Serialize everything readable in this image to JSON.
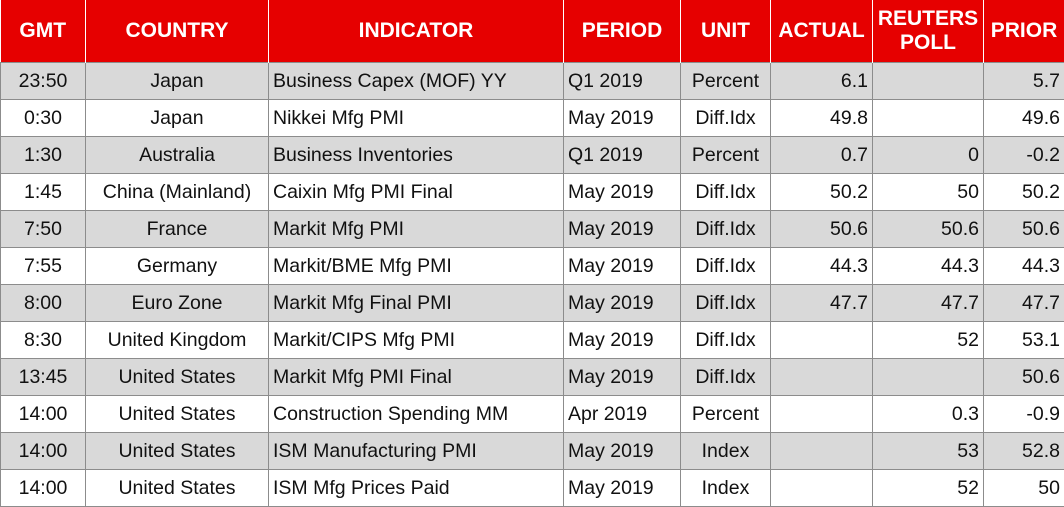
{
  "table": {
    "header": [
      "GMT",
      "COUNTRY",
      "INDICATOR",
      "PERIOD",
      "UNIT",
      "ACTUAL",
      "REUTERS POLL",
      "PRIOR"
    ],
    "rows": [
      [
        "23:50",
        "Japan",
        "Business Capex (MOF) YY",
        "Q1 2019",
        "Percent",
        "6.1",
        null,
        "5.7"
      ],
      [
        "0:30",
        "Japan",
        "Nikkei Mfg PMI",
        "May 2019",
        "Diff.Idx",
        "49.8",
        null,
        "49.6"
      ],
      [
        "1:30",
        "Australia",
        "Business Inventories",
        "Q1 2019",
        "Percent",
        "0.7",
        "0",
        "-0.2"
      ],
      [
        "1:45",
        "China (Mainland)",
        "Caixin Mfg PMI Final",
        "May 2019",
        "Diff.Idx",
        "50.2",
        "50",
        "50.2"
      ],
      [
        "7:50",
        "France",
        "Markit Mfg PMI",
        "May 2019",
        "Diff.Idx",
        "50.6",
        "50.6",
        "50.6"
      ],
      [
        "7:55",
        "Germany",
        "Markit/BME Mfg PMI",
        "May 2019",
        "Diff.Idx",
        "44.3",
        "44.3",
        "44.3"
      ],
      [
        "8:00",
        "Euro Zone",
        "Markit Mfg Final PMI",
        "May 2019",
        "Diff.Idx",
        "47.7",
        "47.7",
        "47.7"
      ],
      [
        "8:30",
        "United Kingdom",
        "Markit/CIPS Mfg PMI",
        "May 2019",
        "Diff.Idx",
        null,
        "52",
        "53.1"
      ],
      [
        "13:45",
        "United States",
        "Markit Mfg PMI Final",
        "May 2019",
        "Diff.Idx",
        null,
        null,
        "50.6"
      ],
      [
        "14:00",
        "United States",
        "Construction Spending MM",
        "Apr 2019",
        "Percent",
        null,
        "0.3",
        "-0.9"
      ],
      [
        "14:00",
        "United States",
        "ISM Manufacturing PMI",
        "May 2019",
        "Index",
        null,
        "53",
        "52.8"
      ],
      [
        "14:00",
        "United States",
        "ISM Mfg Prices Paid",
        "May 2019",
        "Index",
        null,
        "52",
        "50"
      ]
    ]
  }
}
